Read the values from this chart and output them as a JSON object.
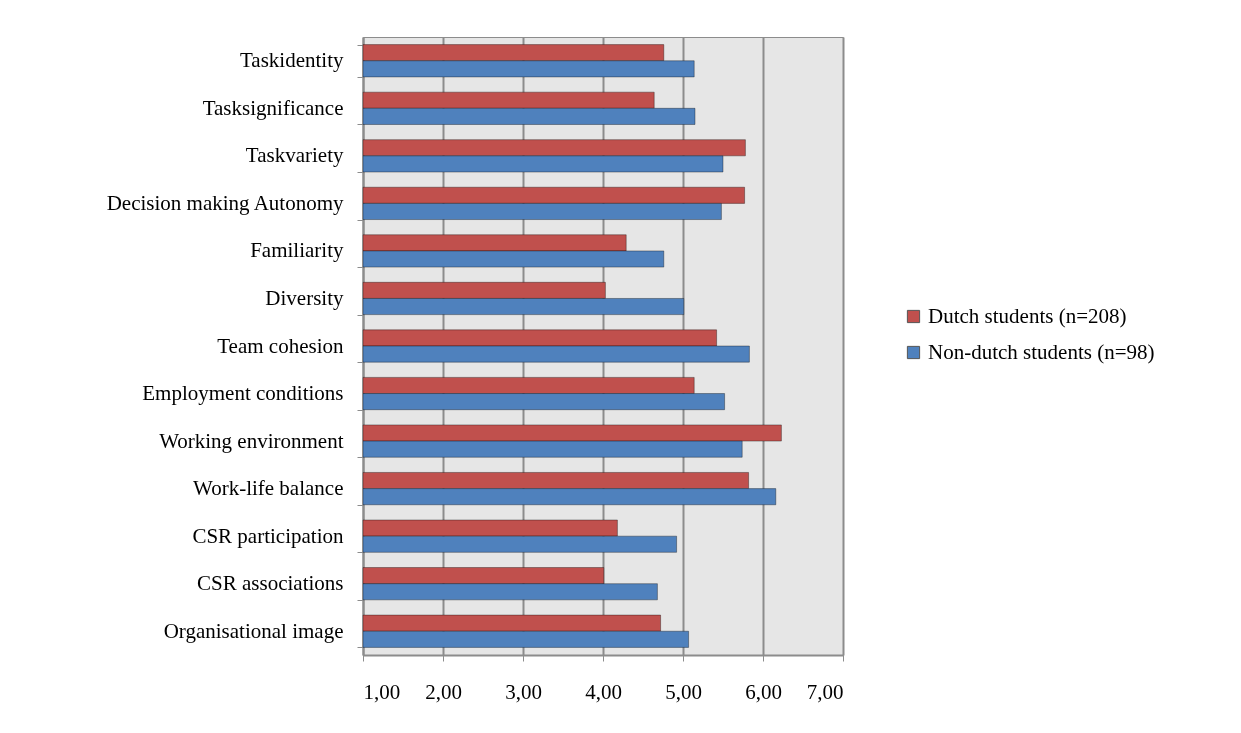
{
  "chart_data": {
    "type": "bar",
    "orientation": "horizontal",
    "categories": [
      "Taskidentity",
      "Tasksignificance",
      "Taskvariety",
      "Decision making Autonomy",
      "Familiarity",
      "Diversity",
      "Team cohesion",
      "Employment conditions",
      "Working environment",
      "Work-life balance",
      "CSR participation",
      "CSR associations",
      "Organisational image"
    ],
    "series": [
      {
        "name": "Dutch students (n=208)",
        "color": "#c0504d",
        "values": [
          4.76,
          4.64,
          5.78,
          5.77,
          4.29,
          4.03,
          5.42,
          5.14,
          6.23,
          5.82,
          4.18,
          4.01,
          4.72
        ]
      },
      {
        "name": "Non-dutch students (n=98)",
        "color": "#4f81bd",
        "values": [
          5.14,
          5.15,
          5.5,
          5.48,
          4.76,
          5.01,
          5.83,
          5.52,
          5.74,
          6.16,
          4.92,
          4.68,
          5.07
        ]
      }
    ],
    "xlim": [
      1,
      7
    ],
    "xticks": [
      {
        "value": 1,
        "label": "1,00"
      },
      {
        "value": 2,
        "label": "2,00"
      },
      {
        "value": 3,
        "label": "3,00"
      },
      {
        "value": 4,
        "label": "4,00"
      },
      {
        "value": 5,
        "label": "5,00"
      },
      {
        "value": 6,
        "label": "6,00"
      },
      {
        "value": 7,
        "label": "7,00"
      }
    ],
    "grid": "x",
    "legend": "right"
  }
}
